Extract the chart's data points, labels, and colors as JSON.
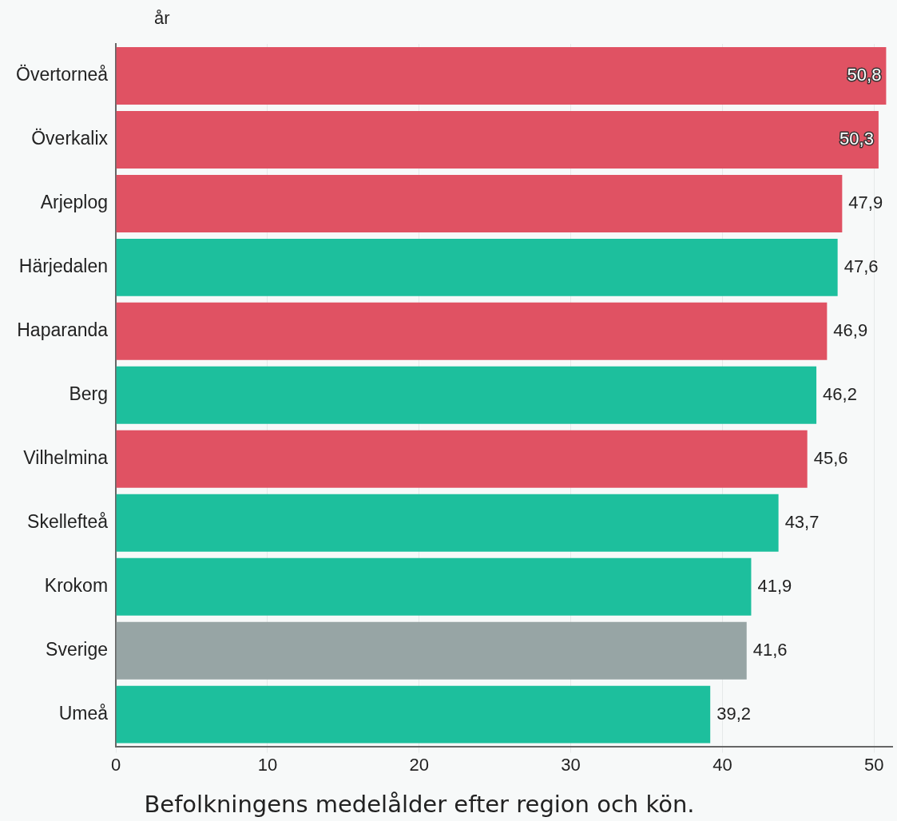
{
  "chart_data": {
    "type": "bar",
    "orientation": "horizontal",
    "xlabel": "år",
    "categories": [
      "Övertorneå",
      "Överkalix",
      "Arjeplog",
      "Härjedalen",
      "Haparanda",
      "Berg",
      "Vilhelmina",
      "Skellefteå",
      "Krokom",
      "Sverige",
      "Umeå"
    ],
    "values": [
      50.8,
      50.3,
      47.9,
      47.6,
      46.9,
      46.2,
      45.6,
      43.7,
      41.9,
      41.6,
      39.2
    ],
    "value_labels": [
      "50,8",
      "50,3",
      "47,9",
      "47,6",
      "46,9",
      "46,2",
      "45,6",
      "43,7",
      "41,9",
      "41,6",
      "39,2"
    ],
    "colors": [
      "#e05263",
      "#e05263",
      "#e05263",
      "#1dbf9d",
      "#e05263",
      "#1dbf9d",
      "#e05263",
      "#1dbf9d",
      "#1dbf9d",
      "#97a5a5",
      "#1dbf9d"
    ],
    "xlim": [
      0,
      51.2
    ],
    "xticks": [
      0,
      10,
      20,
      30,
      40,
      50
    ],
    "grid": "x",
    "annotations": [
      "Befolkningens medelålder efter region och kön."
    ]
  }
}
